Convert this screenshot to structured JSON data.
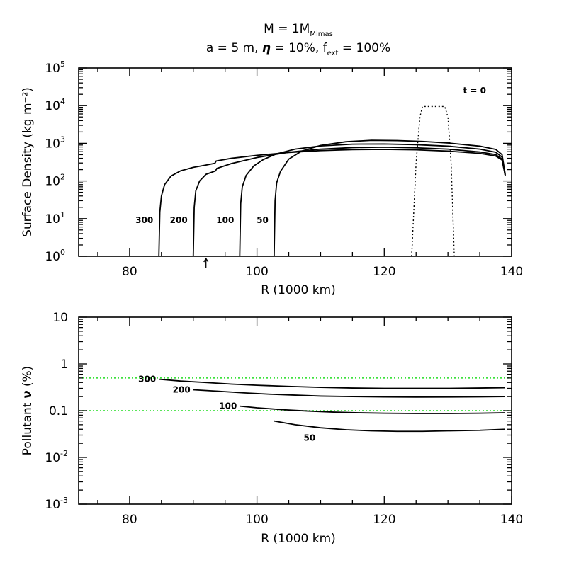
{
  "title": {
    "line1": "M = 1M",
    "line1_sub": "Mimas",
    "line2_a": "a = 5 m, ",
    "line2_eta": "η",
    "line2_b": " = 10%, f",
    "line2_sub": "ext",
    "line2_c": " = 100%"
  },
  "chart_data": [
    {
      "type": "line",
      "name": "top-panel",
      "xlabel": "R (1000 km)",
      "ylabel": "Surface Density (kg m⁻²)",
      "xlim": [
        72,
        140
      ],
      "xscale": "linear",
      "yscale": "log",
      "ylim": [
        1,
        100000
      ],
      "x_ticks": [
        80,
        100,
        120,
        140
      ],
      "y_tick_base": "10",
      "y_tick_exps": [
        "0",
        "1",
        "2",
        "3",
        "4",
        "5"
      ],
      "y_tick_values": [
        1,
        10,
        100,
        1000,
        10000,
        100000
      ],
      "annotation": "t = 0",
      "arrow_x": 92,
      "series": [
        {
          "name": "300",
          "label": "300",
          "style": "solid",
          "x": [
            84.6,
            84.75,
            85.0,
            85.5,
            86.5,
            88,
            90,
            92,
            93.4,
            93.6,
            96,
            100,
            105,
            110,
            115,
            120,
            125,
            130,
            135,
            137.5,
            138.5,
            139
          ],
          "y": [
            1,
            15,
            40,
            80,
            135,
            185,
            230,
            265,
            295,
            340,
            400,
            480,
            570,
            640,
            680,
            690,
            670,
            620,
            540,
            460,
            360,
            140
          ]
        },
        {
          "name": "200",
          "label": "200",
          "style": "solid",
          "x": [
            90.0,
            90.15,
            90.4,
            91,
            92,
            93.5,
            93.7,
            96,
            100,
            105,
            110,
            115,
            120,
            125,
            130,
            135,
            137.5,
            138.5,
            139
          ],
          "y": [
            1,
            20,
            55,
            100,
            150,
            185,
            215,
            290,
            420,
            580,
            700,
            770,
            790,
            760,
            700,
            590,
            500,
            380,
            140
          ]
        },
        {
          "name": "100",
          "label": "100",
          "style": "solid",
          "x": [
            97.3,
            97.45,
            97.7,
            98.3,
            99.5,
            101,
            103,
            106,
            110,
            115,
            120,
            125,
            130,
            135,
            137.5,
            138.5,
            139
          ],
          "y": [
            1,
            25,
            70,
            140,
            250,
            370,
            520,
            700,
            850,
            950,
            960,
            920,
            840,
            700,
            580,
            430,
            140
          ]
        },
        {
          "name": "50",
          "label": "50",
          "style": "solid",
          "x": [
            102.7,
            102.85,
            103.1,
            103.7,
            105,
            107,
            110,
            114,
            118,
            122,
            126,
            130,
            135,
            137.5,
            138.5,
            139
          ],
          "y": [
            1,
            30,
            90,
            180,
            380,
            620,
            880,
            1100,
            1200,
            1180,
            1120,
            1020,
            840,
            690,
            500,
            150
          ]
        },
        {
          "name": "t = 0",
          "label": "",
          "style": "dotted",
          "x": [
            124.3,
            125.0,
            125.6,
            126.0,
            129.5,
            130.0,
            130.5,
            131.0
          ],
          "y": [
            1,
            300,
            5000,
            9500,
            9500,
            5000,
            300,
            1
          ]
        }
      ]
    },
    {
      "type": "line",
      "name": "bottom-panel",
      "xlabel": "R (1000 km)",
      "ylabel_a": "Pollutant ",
      "ylabel_b": "ν",
      "ylabel_c": " (%)",
      "xlim": [
        72,
        140
      ],
      "xscale": "linear",
      "yscale": "log",
      "ylim": [
        0.001,
        10
      ],
      "x_ticks": [
        80,
        100,
        120,
        140
      ],
      "y_tick_labels": [
        "10",
        "1",
        "0.1"
      ],
      "y_tick_label_values": [
        10,
        1,
        0.1
      ],
      "y_tick_pow_base": "10",
      "y_tick_pow_exps": [
        "-2",
        "-3"
      ],
      "y_tick_pow_values": [
        0.01,
        0.001
      ],
      "reference_lines": [
        0.5,
        0.1
      ],
      "reference_color": "#22dd22",
      "series": [
        {
          "name": "300",
          "label": "300",
          "x": [
            84.6,
            88,
            92,
            96,
            100,
            105,
            110,
            115,
            120,
            125,
            130,
            135,
            139
          ],
          "y": [
            0.47,
            0.43,
            0.4,
            0.37,
            0.35,
            0.33,
            0.315,
            0.305,
            0.3,
            0.3,
            0.3,
            0.305,
            0.31
          ]
        },
        {
          "name": "200",
          "label": "200",
          "x": [
            90.0,
            94,
            98,
            102,
            106,
            110,
            115,
            120,
            125,
            130,
            135,
            139
          ],
          "y": [
            0.28,
            0.26,
            0.24,
            0.225,
            0.215,
            0.205,
            0.2,
            0.197,
            0.195,
            0.196,
            0.198,
            0.2
          ]
        },
        {
          "name": "100",
          "label": "100",
          "x": [
            97.3,
            100,
            104,
            108,
            112,
            116,
            120,
            125,
            130,
            135,
            139
          ],
          "y": [
            0.125,
            0.115,
            0.105,
            0.098,
            0.093,
            0.09,
            0.088,
            0.087,
            0.087,
            0.088,
            0.09
          ]
        },
        {
          "name": "50",
          "label": "50",
          "x": [
            102.7,
            106,
            110,
            114,
            118,
            122,
            126,
            130,
            135,
            139
          ],
          "y": [
            0.06,
            0.05,
            0.043,
            0.039,
            0.037,
            0.036,
            0.036,
            0.037,
            0.038,
            0.04
          ]
        }
      ]
    }
  ]
}
